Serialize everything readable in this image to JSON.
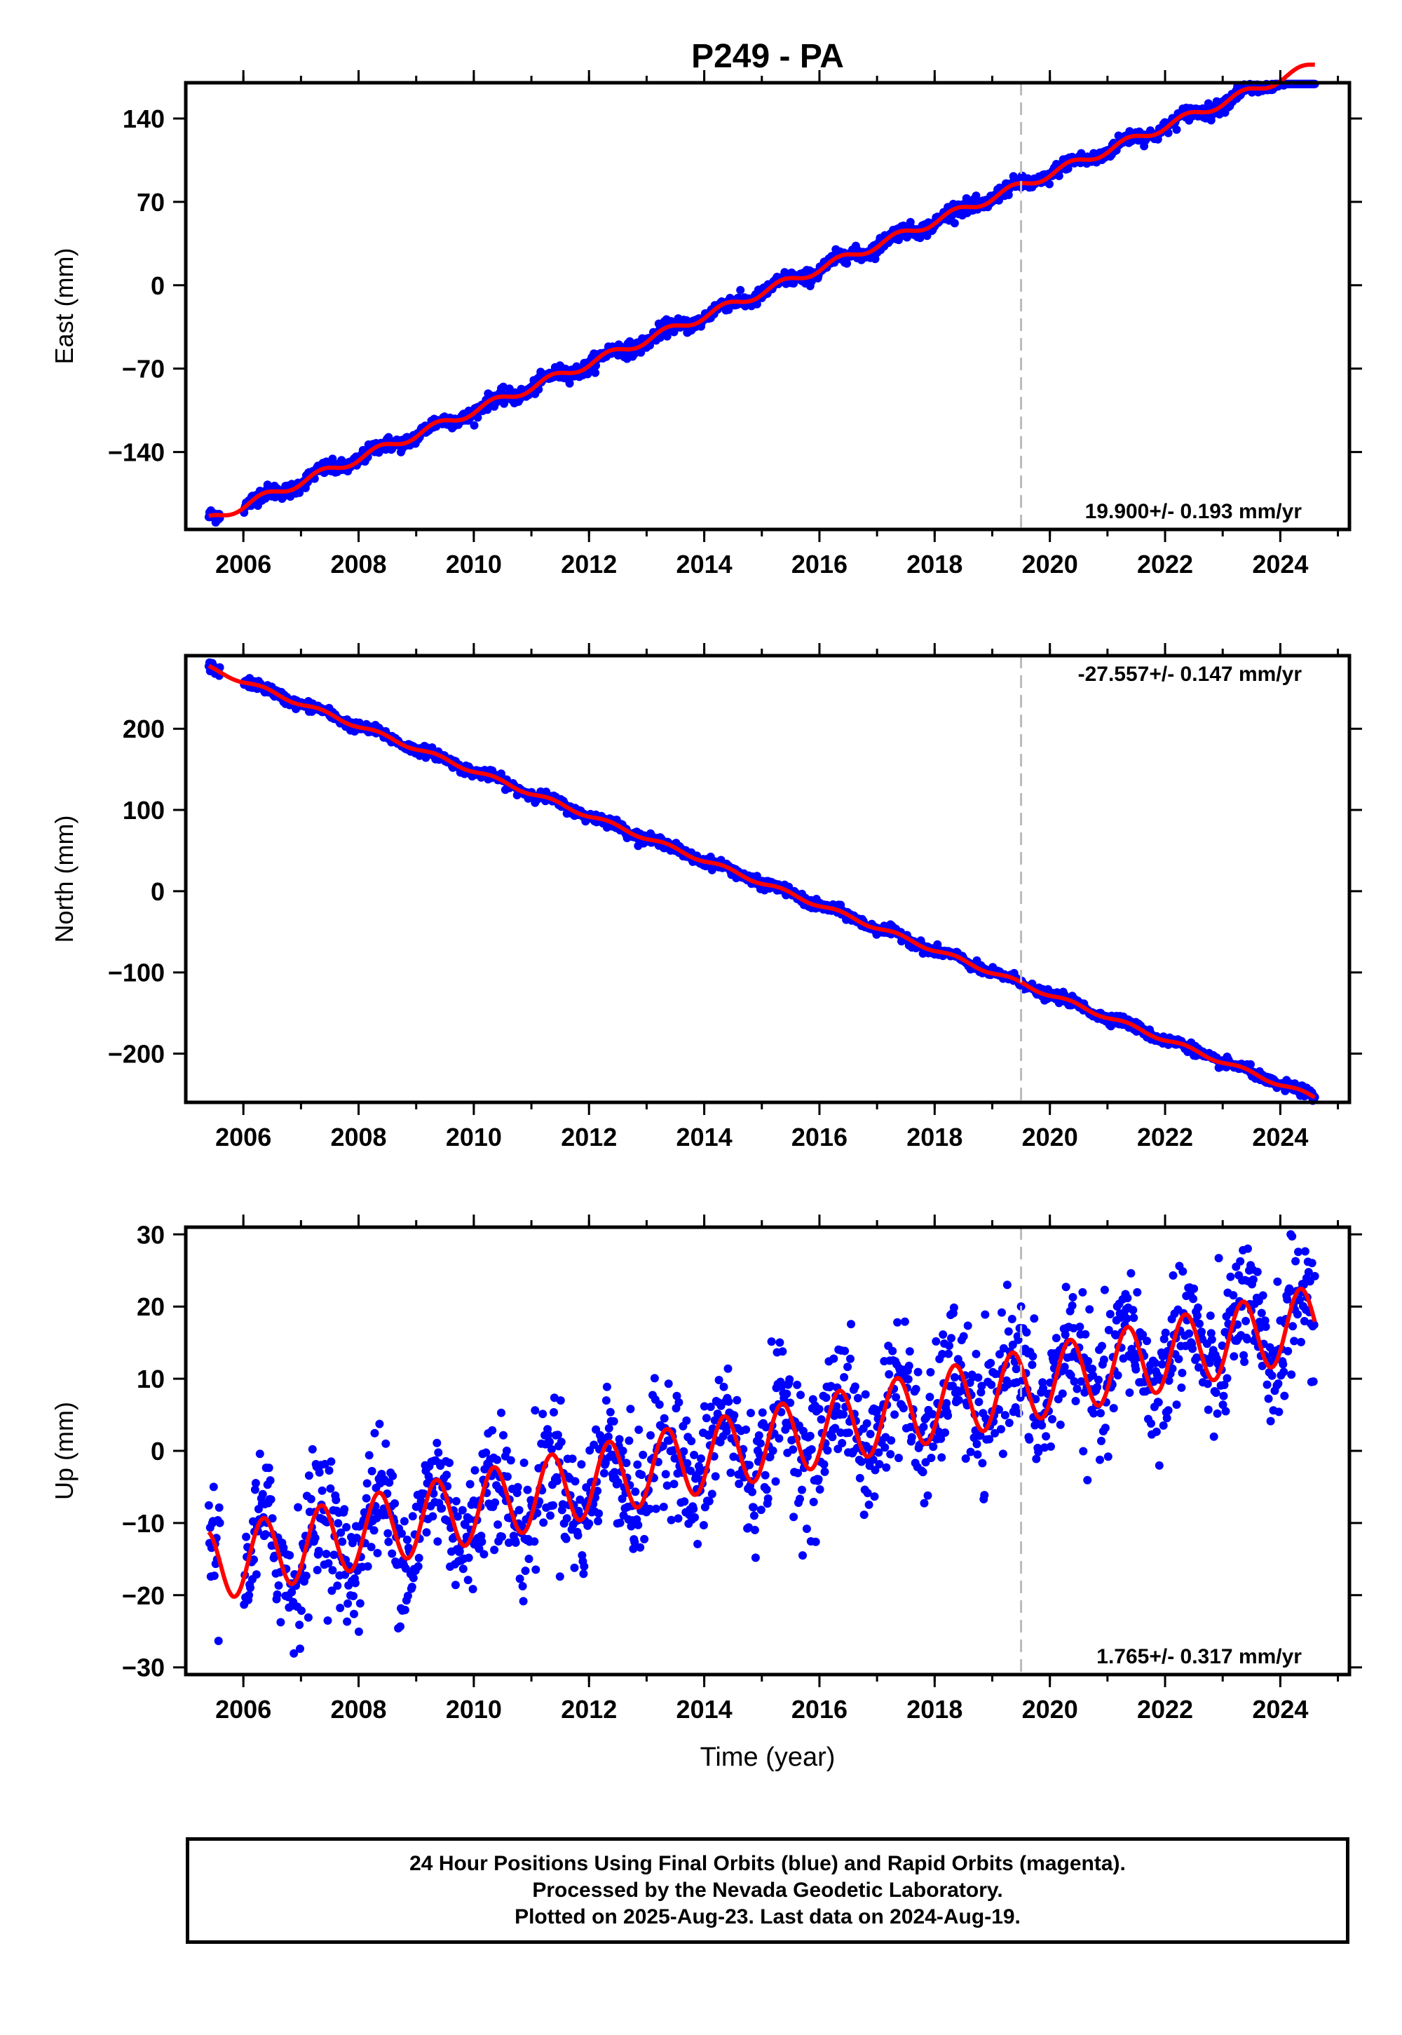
{
  "chart_data": [
    {
      "type": "scatter",
      "title": "P249 - PA",
      "ylabel": "East (mm)",
      "xlabel": "",
      "xlim": [
        2005.0,
        2025.2
      ],
      "ylim": [
        -205,
        170
      ],
      "xticks": [
        2006,
        2008,
        2010,
        2012,
        2014,
        2016,
        2018,
        2020,
        2022,
        2024
      ],
      "xtick_labels": [
        "2006",
        "2008",
        "2010",
        "2012",
        "2014",
        "2016",
        "2018",
        "2020",
        "2022",
        "2024"
      ],
      "yticks": [
        -140,
        -70,
        0,
        70,
        140
      ],
      "ytick_labels": [
        "−140",
        "−70",
        "0",
        "70",
        "140"
      ],
      "rate_label": "19.900+/- 0.193 mm/yr",
      "rate_label_position": "bottom-right",
      "equipment_change_year": 2019.5,
      "trend": {
        "start_year": 2005.4,
        "end_year": 2024.6,
        "start_value": -197,
        "end_value": 165,
        "rate": 19.9,
        "seasonal_amplitude": 3.5
      },
      "series": [
        {
          "name": "Final Orbits",
          "color": "#0000ff",
          "kind": "points",
          "noise": 3.0
        },
        {
          "name": "Model fit",
          "color": "#ff0000",
          "kind": "line"
        }
      ],
      "grid": false
    },
    {
      "type": "scatter",
      "title": "",
      "ylabel": "North (mm)",
      "xlabel": "",
      "xlim": [
        2005.0,
        2025.2
      ],
      "ylim": [
        -260,
        290
      ],
      "xticks": [
        2006,
        2008,
        2010,
        2012,
        2014,
        2016,
        2018,
        2020,
        2022,
        2024
      ],
      "xtick_labels": [
        "2006",
        "2008",
        "2010",
        "2012",
        "2014",
        "2016",
        "2018",
        "2020",
        "2022",
        "2024"
      ],
      "yticks": [
        -200,
        -100,
        0,
        100,
        200
      ],
      "ytick_labels": [
        "−200",
        "−100",
        "0",
        "100",
        "200"
      ],
      "rate_label": "-27.557+/- 0.147 mm/yr",
      "rate_label_position": "top-right",
      "equipment_change_year": 2019.5,
      "trend": {
        "start_year": 2005.4,
        "end_year": 2024.6,
        "start_value": 275,
        "end_value": -250,
        "rate": -27.557,
        "seasonal_amplitude": 2.5
      },
      "series": [
        {
          "name": "Final Orbits",
          "color": "#0000ff",
          "kind": "points",
          "noise": 3.0
        },
        {
          "name": "Model fit",
          "color": "#ff0000",
          "kind": "line"
        }
      ],
      "grid": false
    },
    {
      "type": "scatter",
      "title": "",
      "ylabel": "Up (mm)",
      "xlabel": "Time (year)",
      "xlim": [
        2005.0,
        2025.2
      ],
      "ylim": [
        -31,
        31
      ],
      "xticks": [
        2006,
        2008,
        2010,
        2012,
        2014,
        2016,
        2018,
        2020,
        2022,
        2024
      ],
      "xtick_labels": [
        "2006",
        "2008",
        "2010",
        "2012",
        "2014",
        "2016",
        "2018",
        "2020",
        "2022",
        "2024"
      ],
      "yticks": [
        -30,
        -20,
        -10,
        0,
        10,
        20,
        30
      ],
      "ytick_labels": [
        "−30",
        "−20",
        "−10",
        "0",
        "10",
        "20",
        "30"
      ],
      "rate_label": "1.765+/- 0.317 mm/yr",
      "rate_label_position": "bottom-right",
      "equipment_change_year": 2019.5,
      "trend": {
        "start_year": 2005.4,
        "end_year": 2024.6,
        "start_value": -16,
        "end_value": 15,
        "rate": 1.765,
        "seasonal_amplitude": 5.0
      },
      "series": [
        {
          "name": "Final Orbits",
          "color": "#0000ff",
          "kind": "points",
          "noise": 4.5
        },
        {
          "name": "Model fit",
          "color": "#ff0000",
          "kind": "line"
        }
      ],
      "grid": false
    }
  ],
  "caption": {
    "line1": "24 Hour Positions Using Final Orbits (blue) and Rapid Orbits (magenta).",
    "line2": "Processed by the Nevada Geodetic Laboratory.",
    "line3": "Plotted on 2025-Aug-23. Last data on 2024-Aug-19."
  }
}
